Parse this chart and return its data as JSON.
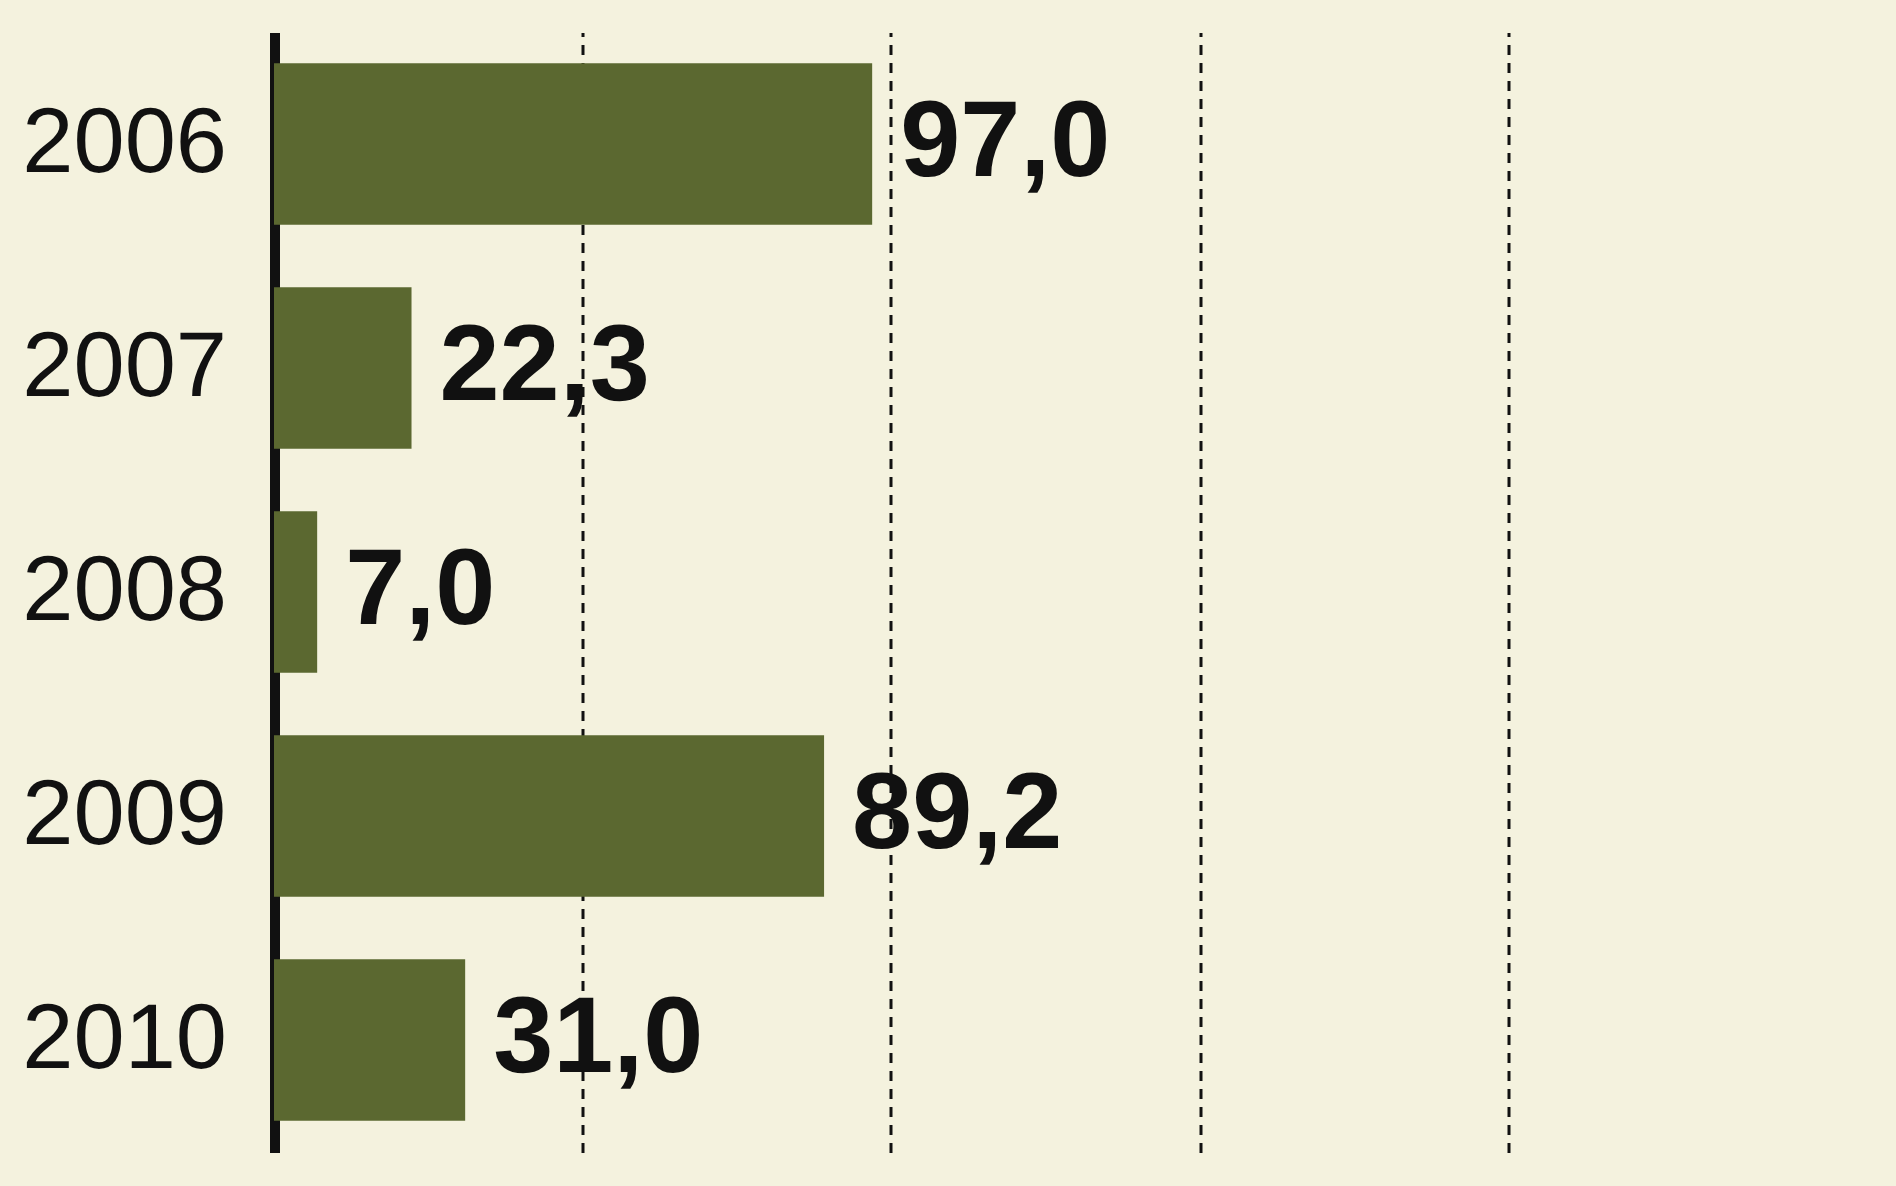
{
  "chart_data": {
    "type": "bar",
    "orientation": "horizontal",
    "categories": [
      "2006",
      "2007",
      "2008",
      "2009",
      "2010"
    ],
    "values": [
      97.0,
      22.3,
      7.0,
      89.2,
      31.0
    ],
    "value_labels": [
      "97,0",
      "22,3",
      "7,0",
      "89,2",
      "31,0"
    ],
    "color": "#5b6830",
    "xlim": [
      0,
      240
    ],
    "xticks": [
      {
        "value": 50,
        "label": null
      },
      {
        "value": 100,
        "label": null
      },
      {
        "value": 150,
        "label": null
      },
      {
        "value": 200,
        "label": null
      }
    ],
    "grid": "x",
    "tick_labels": "y"
  }
}
